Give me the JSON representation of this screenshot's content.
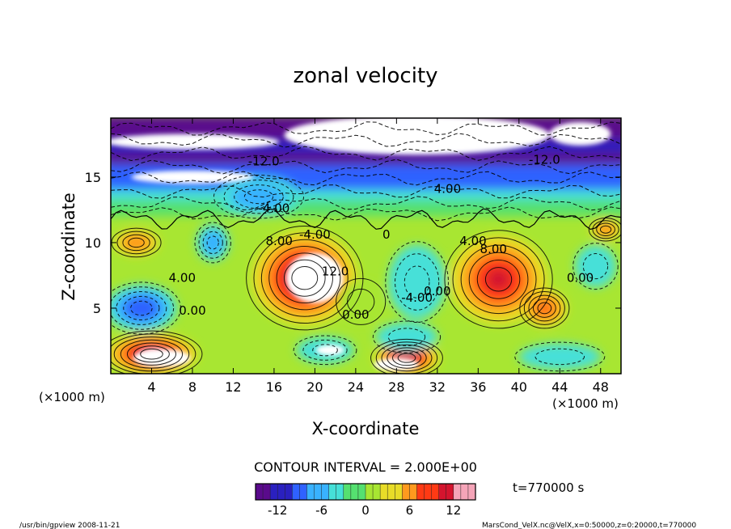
{
  "chart_data": {
    "type": "heatmap",
    "title": "zonal velocity",
    "xlabel": "X-coordinate",
    "ylabel": "Z-coordinate",
    "x_unit_left": "(×1000 m)",
    "x_unit_right": "(×1000 m)",
    "xlim": [
      0,
      50
    ],
    "ylim": [
      0,
      19.5
    ],
    "x_ticks": [
      4,
      8,
      12,
      16,
      20,
      24,
      28,
      32,
      36,
      40,
      44,
      48
    ],
    "y_ticks": [
      5,
      10,
      15
    ],
    "contour_interval_text": "CONTOUR INTERVAL = 2.000E+00",
    "time_text": "t=770000 s",
    "colorbar": {
      "range": [
        -15,
        15
      ],
      "ticks": [
        -12,
        -6,
        0,
        6,
        12
      ],
      "colors": [
        "#5a0a8c",
        "#2a20c0",
        "#2f62ff",
        "#39b2ff",
        "#46e0d8",
        "#55e070",
        "#a8e632",
        "#e8dc28",
        "#ff9a1e",
        "#ff3a14",
        "#d4142e",
        "#f5a4b8"
      ]
    },
    "contour_labels": [
      {
        "text": "-12.0",
        "x": 15.0,
        "y": 15.9
      },
      {
        "text": "-12.0",
        "x": 42.5,
        "y": 16.0
      },
      {
        "text": "4.00",
        "x": 33.0,
        "y": 13.8
      },
      {
        "text": "-4.00",
        "x": 16.0,
        "y": 12.3
      },
      {
        "text": "8.00",
        "x": 16.5,
        "y": 9.8
      },
      {
        "text": "8.00",
        "x": 37.5,
        "y": 9.2
      },
      {
        "text": "4.00",
        "x": 35.5,
        "y": 9.8
      },
      {
        "text": "12.0",
        "x": 22.0,
        "y": 7.5
      },
      {
        "text": "4.00",
        "x": 7.0,
        "y": 7.0
      },
      {
        "text": "0.00",
        "x": 8.0,
        "y": 4.5
      },
      {
        "text": "0.00",
        "x": 24.0,
        "y": 4.2
      },
      {
        "text": "-4.00",
        "x": 30.0,
        "y": 5.5
      },
      {
        "text": "0.00",
        "x": 32.0,
        "y": 6.0
      },
      {
        "text": "0.00",
        "x": 46.0,
        "y": 7.0
      },
      {
        "text": "-4.00",
        "x": 20.0,
        "y": 10.3
      },
      {
        "text": "0",
        "x": 27.0,
        "y": 10.3
      }
    ],
    "field_blobs": [
      {
        "x": 19,
        "y": 7.3,
        "rx": 5.2,
        "ry": 3.6,
        "v": 13
      },
      {
        "x": 38,
        "y": 7.2,
        "rx": 4.8,
        "ry": 3.4,
        "v": 11
      },
      {
        "x": 42.5,
        "y": 5.0,
        "rx": 2.2,
        "ry": 1.4,
        "v": 9
      },
      {
        "x": 4,
        "y": 1.5,
        "rx": 4.5,
        "ry": 1.6,
        "v": 13
      },
      {
        "x": 29,
        "y": 1.2,
        "rx": 3.2,
        "ry": 1.3,
        "v": 12
      },
      {
        "x": 21,
        "y": 1.8,
        "rx": 2.8,
        "ry": 1.0,
        "v": -5
      },
      {
        "x": 24.5,
        "y": 5.5,
        "rx": 2.2,
        "ry": 1.6,
        "v": 2
      },
      {
        "x": 3.0,
        "y": 5.0,
        "rx": 3.5,
        "ry": 1.8,
        "v": -10
      },
      {
        "x": 10,
        "y": 10.0,
        "rx": 1.6,
        "ry": 1.4,
        "v": -7
      },
      {
        "x": 2.5,
        "y": 10.0,
        "rx": 2.2,
        "ry": 1.0,
        "v": 7
      },
      {
        "x": 30,
        "y": 7.0,
        "rx": 2.8,
        "ry": 2.8,
        "v": -5
      },
      {
        "x": 29,
        "y": 2.8,
        "rx": 3.0,
        "ry": 1.1,
        "v": -3
      },
      {
        "x": 47.5,
        "y": 8.2,
        "rx": 2.0,
        "ry": 1.6,
        "v": -4
      },
      {
        "x": 48.5,
        "y": 11.0,
        "rx": 1.5,
        "ry": 0.8,
        "v": 7
      },
      {
        "x": 14.5,
        "y": 13.5,
        "rx": 4.0,
        "ry": 1.5,
        "v": -7
      },
      {
        "x": 44,
        "y": 1.3,
        "rx": 4.0,
        "ry": 1.0,
        "v": -4
      }
    ],
    "white_regions": [
      {
        "x": 20,
        "y": 7.3,
        "rx": 2.8,
        "ry": 1.9
      },
      {
        "x": 5,
        "y": 1.2,
        "rx": 2.8,
        "ry": 0.7
      },
      {
        "x": 28,
        "y": 0.7,
        "rx": 2.2,
        "ry": 0.5
      },
      {
        "x": 21.5,
        "y": 1.8,
        "rx": 1.4,
        "ry": 0.4
      },
      {
        "x": 8,
        "y": 17.7,
        "rx": 8.5,
        "ry": 0.6
      },
      {
        "x": 8,
        "y": 15.0,
        "rx": 6.0,
        "ry": 0.5
      },
      {
        "x": 30,
        "y": 18.2,
        "rx": 13.0,
        "ry": 1.5
      },
      {
        "x": 46,
        "y": 18.3,
        "rx": 3.0,
        "ry": 0.9
      }
    ],
    "upper_bands": [
      {
        "y": 19.2,
        "v": -14
      },
      {
        "y": 18.3,
        "v": -15
      },
      {
        "y": 17.3,
        "v": -12
      },
      {
        "y": 16.3,
        "v": -13
      },
      {
        "y": 15.4,
        "v": -9
      },
      {
        "y": 14.4,
        "v": -8
      },
      {
        "y": 13.5,
        "v": -5
      },
      {
        "y": 12.7,
        "v": -1
      }
    ]
  },
  "footer": {
    "left_text": "/usr/bin/gpview   2008-11-21",
    "right_text": "MarsCond_VelX.nc@VelX,x=0:50000,z=0:20000,t=770000"
  }
}
